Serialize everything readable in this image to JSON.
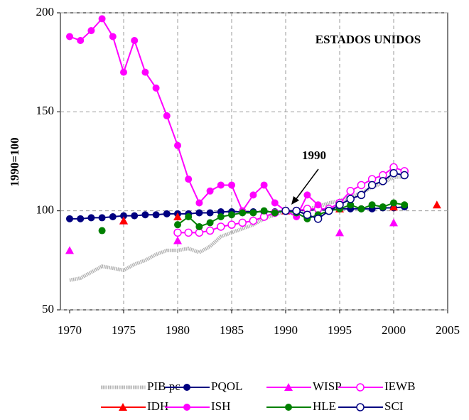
{
  "chart_data": {
    "type": "line",
    "title": "ESTADOS UNIDOS",
    "y_label": "1990=100",
    "annotation": "1990",
    "xlim": [
      1970,
      2005
    ],
    "xticks": [
      1970,
      1975,
      1980,
      1985,
      1990,
      1995,
      2000,
      2005
    ],
    "ylim": [
      50,
      200
    ],
    "yticks": [
      50,
      100,
      150,
      200
    ],
    "grid": true,
    "series": [
      {
        "name": "PIB pc",
        "color": "#b4b4b4",
        "marker": "none",
        "line": true,
        "x": [
          1970,
          1971,
          1972,
          1973,
          1974,
          1975,
          1976,
          1977,
          1978,
          1979,
          1980,
          1981,
          1982,
          1983,
          1984,
          1985,
          1986,
          1987,
          1988,
          1989,
          1990,
          1991,
          1992,
          1993,
          1994,
          1995,
          1996,
          1997,
          1998,
          1999,
          2000,
          2001
        ],
        "values": [
          65,
          66,
          69,
          72,
          71,
          70,
          73,
          75,
          78,
          80,
          80,
          81,
          79,
          82,
          87,
          89,
          91,
          93,
          96,
          98,
          100,
          99,
          101,
          102,
          104,
          105,
          107,
          109,
          112,
          114,
          117,
          117
        ]
      },
      {
        "name": "PQOL",
        "color": "#000080",
        "marker": "circle",
        "line": true,
        "x": [
          1970,
          1971,
          1972,
          1973,
          1974,
          1975,
          1976,
          1977,
          1978,
          1979,
          1980,
          1981,
          1982,
          1983,
          1984,
          1985,
          1986,
          1987,
          1988,
          1989,
          1990,
          1991,
          1992,
          1993,
          1994,
          1995,
          1996,
          1997,
          1998,
          1999,
          2000,
          2001
        ],
        "values": [
          96,
          96,
          96.5,
          96.5,
          97,
          97.5,
          97.5,
          98,
          98,
          98.5,
          98.5,
          98.5,
          99,
          99,
          99.5,
          99.5,
          99.5,
          99.5,
          99.5,
          99.5,
          100,
          100,
          100.5,
          100.5,
          100.5,
          101,
          101,
          101,
          101,
          101.5,
          101.5,
          102
        ]
      },
      {
        "name": "WISP",
        "color": "#ff00ff",
        "marker": "triangle",
        "line": false,
        "x": [
          1970,
          1975,
          1980,
          1990,
          1995,
          2000
        ],
        "values": [
          80,
          95,
          85,
          100,
          89,
          94
        ]
      },
      {
        "name": "IEWB",
        "color": "#ff00ff",
        "marker": "open-circle",
        "line": true,
        "x": [
          1980,
          1981,
          1982,
          1983,
          1984,
          1985,
          1986,
          1987,
          1988,
          1989,
          1990,
          1991,
          1992,
          1993,
          1994,
          1995,
          1996,
          1997,
          1998,
          1999,
          2000,
          2001
        ],
        "values": [
          89,
          89,
          89,
          90,
          92,
          93,
          94,
          95,
          97,
          99,
          100,
          100,
          101,
          101,
          101,
          104,
          110,
          113,
          116,
          118,
          122,
          120
        ]
      },
      {
        "name": "IDH",
        "color": "#ff0000",
        "marker": "triangle",
        "line": false,
        "x": [
          1975,
          1980,
          1990,
          1995,
          2000,
          2004
        ],
        "values": [
          95,
          97,
          100,
          101,
          102,
          103
        ]
      },
      {
        "name": "ISH",
        "color": "#ff00ff",
        "marker": "circle",
        "line": true,
        "x": [
          1970,
          1971,
          1972,
          1973,
          1974,
          1975,
          1976,
          1977,
          1978,
          1979,
          1980,
          1981,
          1982,
          1983,
          1984,
          1985,
          1986,
          1987,
          1988,
          1989,
          1990,
          1991,
          1992,
          1993
        ],
        "values": [
          188,
          186,
          191,
          197,
          188,
          170,
          186,
          170,
          162,
          148,
          133,
          116,
          104,
          110,
          113,
          113,
          100,
          108,
          113,
          104,
          100,
          97,
          108,
          103
        ]
      },
      {
        "name": "HLE",
        "color": "#008000",
        "marker": "circle",
        "line": true,
        "x": [
          1973,
          1979,
          1980,
          1981,
          1982,
          1983,
          1984,
          1985,
          1986,
          1987,
          1988,
          1989,
          1990,
          1991,
          1992,
          1993,
          1994,
          1995,
          1996,
          1997,
          1998,
          1999,
          2000,
          2001
        ],
        "values": [
          90,
          null,
          93,
          97,
          92,
          94,
          97,
          98,
          99,
          99,
          100,
          99,
          100,
          99,
          96,
          98,
          100,
          101,
          103,
          101,
          103,
          102,
          104,
          103
        ]
      },
      {
        "name": "SCI",
        "color": "#000080",
        "marker": "open-circle",
        "line": true,
        "x": [
          1990,
          1991,
          1992,
          1993,
          1994,
          1995,
          1996,
          1997,
          1998,
          1999,
          2000,
          2001
        ],
        "values": [
          100,
          100,
          98,
          96,
          100,
          103,
          106,
          108,
          113,
          115,
          119,
          118
        ]
      }
    ]
  }
}
